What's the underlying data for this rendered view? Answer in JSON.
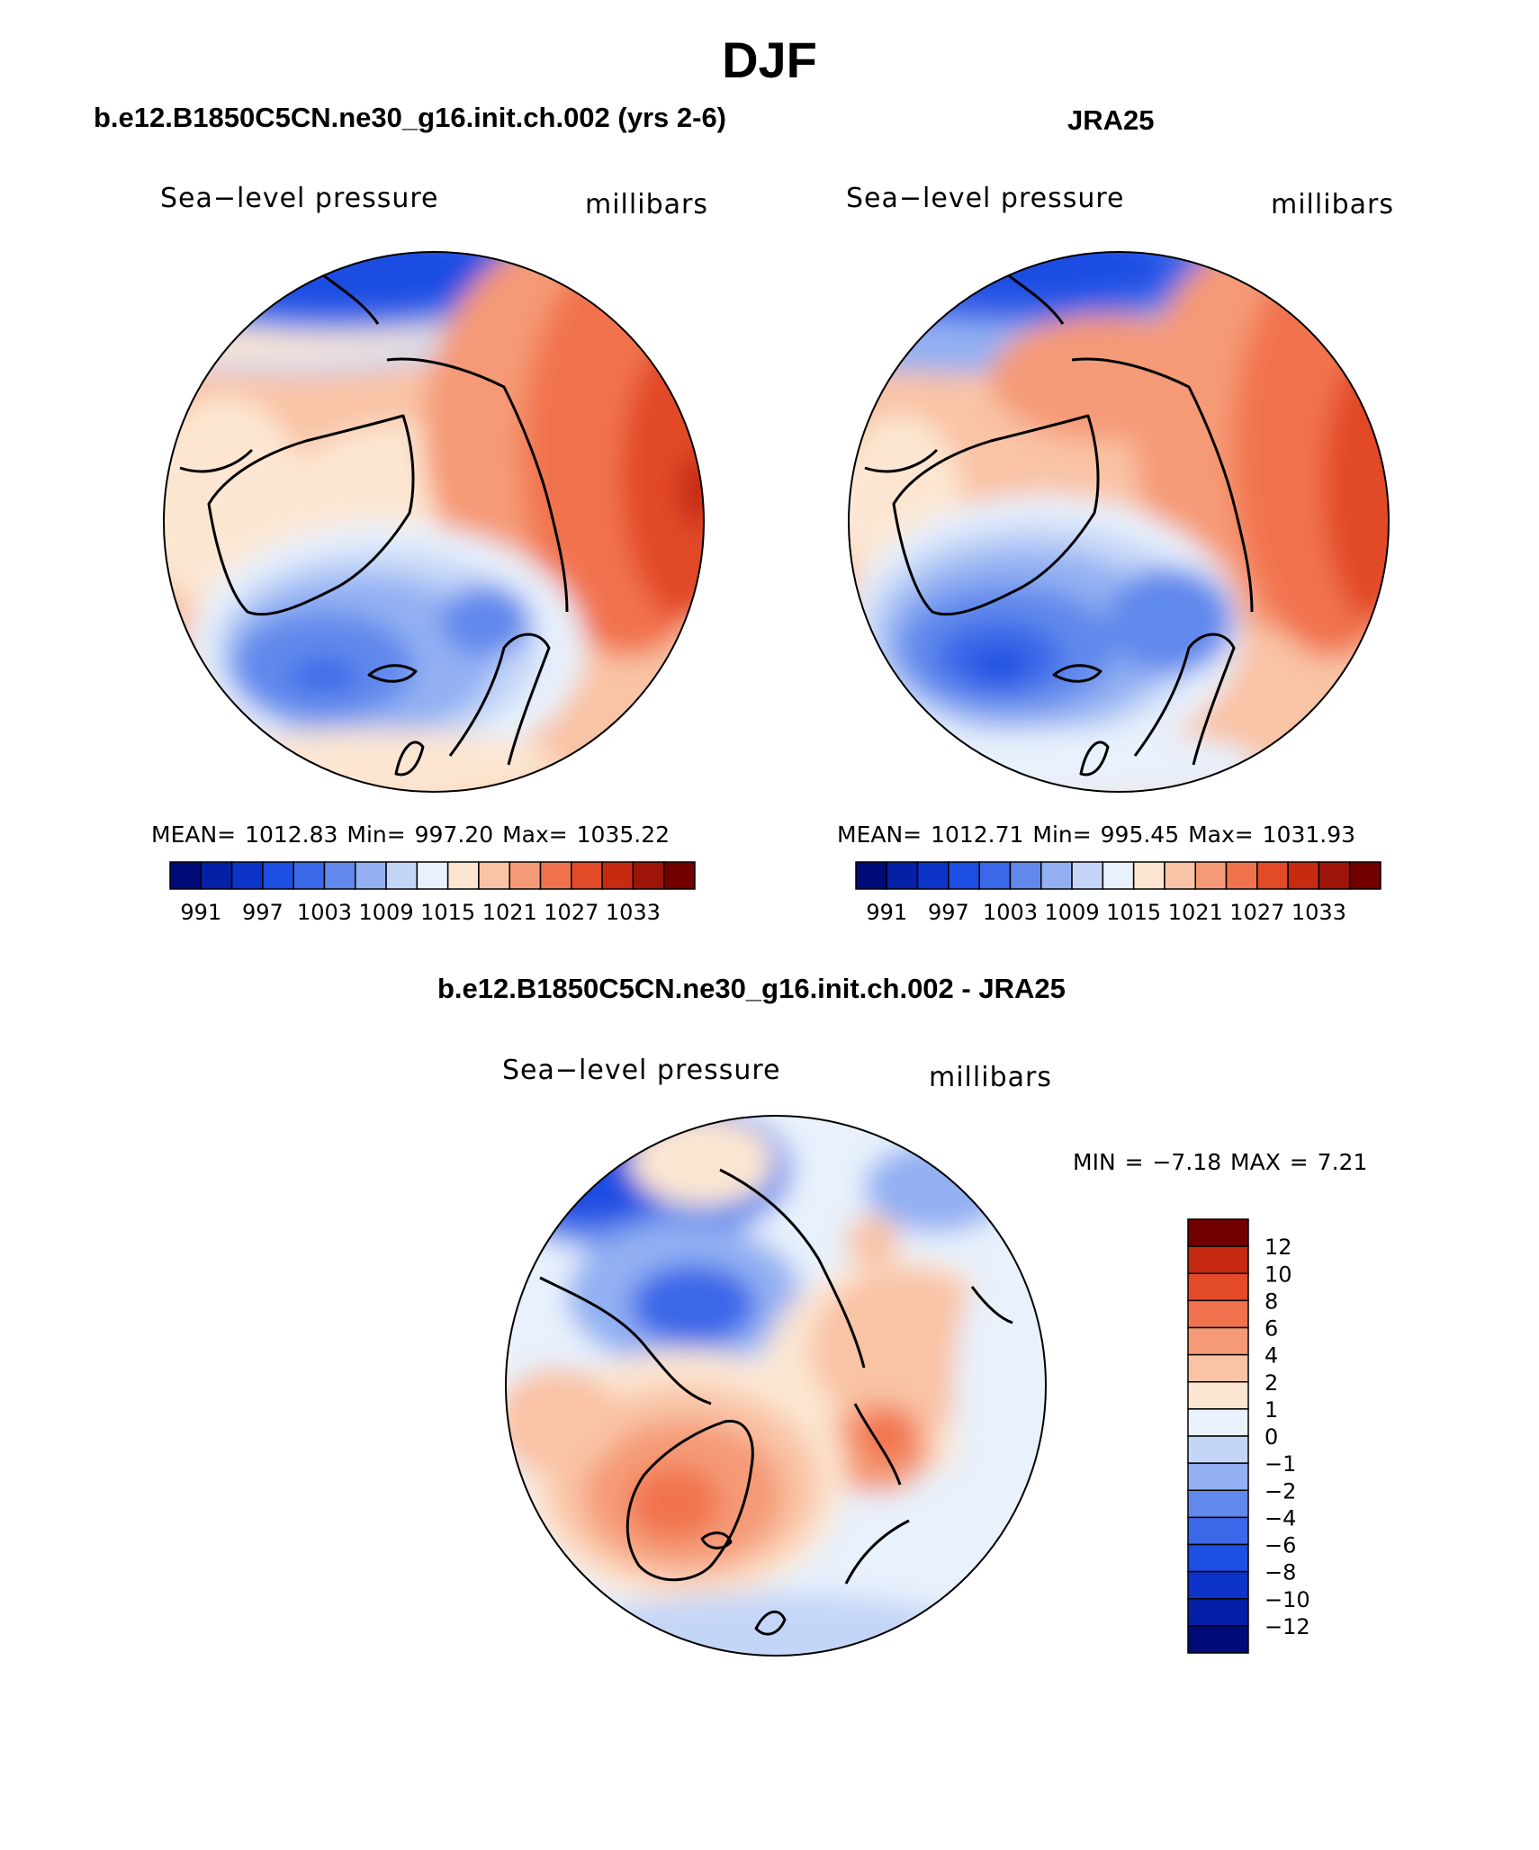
{
  "figure": {
    "title": "DJF",
    "panels": [
      {
        "title": "b.e12.B1850C5CN.ne30_g16.init.ch.002 (yrs 2-6)",
        "field": "Sea−level pressure",
        "units": "millibars",
        "stats": "MEAN= 1012.83   Min= 997.20   Max= 1035.22"
      },
      {
        "title": "JRA25",
        "field": "Sea−level pressure",
        "units": "millibars",
        "stats": "MEAN= 1012.71   Min= 995.45   Max= 1031.93"
      },
      {
        "title": "b.e12.B1850C5CN.ne30_g16.init.ch.002 - JRA25",
        "field": "Sea−level pressure",
        "units": "millibars",
        "stats": "MIN =   −7.18  MAX =     7.21"
      }
    ]
  },
  "colors": {
    "abs_scale": [
      "#000b7a",
      "#0520a6",
      "#0d34c8",
      "#1d4ee3",
      "#3a68e8",
      "#6189ec",
      "#93b0f3",
      "#c4d6f8",
      "#e8f1fc",
      "#fce6d2",
      "#f9c3a5",
      "#f59a76",
      "#f1734d",
      "#e24a28",
      "#c62b12",
      "#9f1408",
      "#720000"
    ],
    "diff_scale": [
      "#000b7a",
      "#0520a6",
      "#0d34c8",
      "#1d4ee3",
      "#3a68e8",
      "#6189ec",
      "#93b0f3",
      "#c4d6f8",
      "#e8f1fc",
      "#fce6d2",
      "#f9c3a5",
      "#f59a76",
      "#f1734d",
      "#e24a28",
      "#c62b12",
      "#720000"
    ]
  },
  "chart_data": [
    {
      "type": "heatmap",
      "title": "b.e12.B1850C5CN.ne30_g16.init.ch.002 (yrs 2-6)",
      "variable": "Sea−level pressure",
      "units": "millibars",
      "projection": "north polar stereographic",
      "mean": 1012.83,
      "min": 997.2,
      "max": 1035.22,
      "colorbar": {
        "levels": [
          991,
          994,
          997,
          1000,
          1003,
          1006,
          1009,
          1012,
          1015,
          1018,
          1021,
          1024,
          1027,
          1030,
          1033,
          1036
        ],
        "labels": [
          "991",
          "997",
          "1003",
          "1009",
          "1015",
          "1021",
          "1027",
          "1033"
        ]
      }
    },
    {
      "type": "heatmap",
      "title": "JRA25",
      "variable": "Sea−level pressure",
      "units": "millibars",
      "projection": "north polar stereographic",
      "mean": 1012.71,
      "min": 995.45,
      "max": 1031.93,
      "colorbar": {
        "levels": [
          991,
          994,
          997,
          1000,
          1003,
          1006,
          1009,
          1012,
          1015,
          1018,
          1021,
          1024,
          1027,
          1030,
          1033,
          1036
        ],
        "labels": [
          "991",
          "997",
          "1003",
          "1009",
          "1015",
          "1021",
          "1027",
          "1033"
        ]
      }
    },
    {
      "type": "heatmap",
      "title": "b.e12.B1850C5CN.ne30_g16.init.ch.002 - JRA25",
      "variable": "Sea−level pressure",
      "units": "millibars",
      "projection": "north polar stereographic",
      "min": -7.18,
      "max": 7.21,
      "colorbar": {
        "levels": [
          -12,
          -10,
          -8,
          -6,
          -4,
          -2,
          -1,
          0,
          1,
          2,
          4,
          6,
          8,
          10,
          12
        ],
        "labels": [
          "12",
          "10",
          "8",
          "6",
          "4",
          "2",
          "1",
          "0",
          "−1",
          "−2",
          "−4",
          "−6",
          "−8",
          "−10",
          "−12"
        ]
      }
    }
  ]
}
